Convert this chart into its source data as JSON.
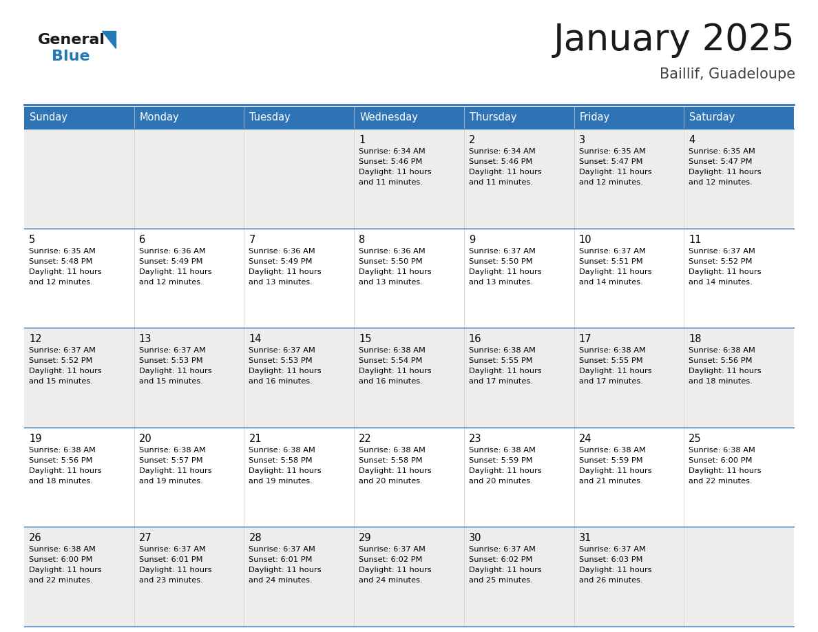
{
  "title": "January 2025",
  "subtitle": "Baillif, Guadeloupe",
  "days_of_week": [
    "Sunday",
    "Monday",
    "Tuesday",
    "Wednesday",
    "Thursday",
    "Friday",
    "Saturday"
  ],
  "header_bg": "#2E74B5",
  "header_text": "#FFFFFF",
  "row_bg_odd": "#EDEDED",
  "row_bg_even": "#FFFFFF",
  "cell_text": "#000000",
  "day_number_color": "#000000",
  "divider_color": "#2E74B5",
  "title_color": "#1A1A1A",
  "subtitle_color": "#404040",
  "logo_general_color": "#1A1A1A",
  "logo_blue_color": "#2179B5",
  "calendar_data": [
    [
      {
        "day": null,
        "sunrise": null,
        "sunset": null,
        "daylight": null
      },
      {
        "day": null,
        "sunrise": null,
        "sunset": null,
        "daylight": null
      },
      {
        "day": null,
        "sunrise": null,
        "sunset": null,
        "daylight": null
      },
      {
        "day": 1,
        "sunrise": "6:34 AM",
        "sunset": "5:46 PM",
        "daylight": "11 hours and 11 minutes."
      },
      {
        "day": 2,
        "sunrise": "6:34 AM",
        "sunset": "5:46 PM",
        "daylight": "11 hours and 11 minutes."
      },
      {
        "day": 3,
        "sunrise": "6:35 AM",
        "sunset": "5:47 PM",
        "daylight": "11 hours and 12 minutes."
      },
      {
        "day": 4,
        "sunrise": "6:35 AM",
        "sunset": "5:47 PM",
        "daylight": "11 hours and 12 minutes."
      }
    ],
    [
      {
        "day": 5,
        "sunrise": "6:35 AM",
        "sunset": "5:48 PM",
        "daylight": "11 hours and 12 minutes."
      },
      {
        "day": 6,
        "sunrise": "6:36 AM",
        "sunset": "5:49 PM",
        "daylight": "11 hours and 12 minutes."
      },
      {
        "day": 7,
        "sunrise": "6:36 AM",
        "sunset": "5:49 PM",
        "daylight": "11 hours and 13 minutes."
      },
      {
        "day": 8,
        "sunrise": "6:36 AM",
        "sunset": "5:50 PM",
        "daylight": "11 hours and 13 minutes."
      },
      {
        "day": 9,
        "sunrise": "6:37 AM",
        "sunset": "5:50 PM",
        "daylight": "11 hours and 13 minutes."
      },
      {
        "day": 10,
        "sunrise": "6:37 AM",
        "sunset": "5:51 PM",
        "daylight": "11 hours and 14 minutes."
      },
      {
        "day": 11,
        "sunrise": "6:37 AM",
        "sunset": "5:52 PM",
        "daylight": "11 hours and 14 minutes."
      }
    ],
    [
      {
        "day": 12,
        "sunrise": "6:37 AM",
        "sunset": "5:52 PM",
        "daylight": "11 hours and 15 minutes."
      },
      {
        "day": 13,
        "sunrise": "6:37 AM",
        "sunset": "5:53 PM",
        "daylight": "11 hours and 15 minutes."
      },
      {
        "day": 14,
        "sunrise": "6:37 AM",
        "sunset": "5:53 PM",
        "daylight": "11 hours and 16 minutes."
      },
      {
        "day": 15,
        "sunrise": "6:38 AM",
        "sunset": "5:54 PM",
        "daylight": "11 hours and 16 minutes."
      },
      {
        "day": 16,
        "sunrise": "6:38 AM",
        "sunset": "5:55 PM",
        "daylight": "11 hours and 17 minutes."
      },
      {
        "day": 17,
        "sunrise": "6:38 AM",
        "sunset": "5:55 PM",
        "daylight": "11 hours and 17 minutes."
      },
      {
        "day": 18,
        "sunrise": "6:38 AM",
        "sunset": "5:56 PM",
        "daylight": "11 hours and 18 minutes."
      }
    ],
    [
      {
        "day": 19,
        "sunrise": "6:38 AM",
        "sunset": "5:56 PM",
        "daylight": "11 hours and 18 minutes."
      },
      {
        "day": 20,
        "sunrise": "6:38 AM",
        "sunset": "5:57 PM",
        "daylight": "11 hours and 19 minutes."
      },
      {
        "day": 21,
        "sunrise": "6:38 AM",
        "sunset": "5:58 PM",
        "daylight": "11 hours and 19 minutes."
      },
      {
        "day": 22,
        "sunrise": "6:38 AM",
        "sunset": "5:58 PM",
        "daylight": "11 hours and 20 minutes."
      },
      {
        "day": 23,
        "sunrise": "6:38 AM",
        "sunset": "5:59 PM",
        "daylight": "11 hours and 20 minutes."
      },
      {
        "day": 24,
        "sunrise": "6:38 AM",
        "sunset": "5:59 PM",
        "daylight": "11 hours and 21 minutes."
      },
      {
        "day": 25,
        "sunrise": "6:38 AM",
        "sunset": "6:00 PM",
        "daylight": "11 hours and 22 minutes."
      }
    ],
    [
      {
        "day": 26,
        "sunrise": "6:38 AM",
        "sunset": "6:00 PM",
        "daylight": "11 hours and 22 minutes."
      },
      {
        "day": 27,
        "sunrise": "6:37 AM",
        "sunset": "6:01 PM",
        "daylight": "11 hours and 23 minutes."
      },
      {
        "day": 28,
        "sunrise": "6:37 AM",
        "sunset": "6:01 PM",
        "daylight": "11 hours and 24 minutes."
      },
      {
        "day": 29,
        "sunrise": "6:37 AM",
        "sunset": "6:02 PM",
        "daylight": "11 hours and 24 minutes."
      },
      {
        "day": 30,
        "sunrise": "6:37 AM",
        "sunset": "6:02 PM",
        "daylight": "11 hours and 25 minutes."
      },
      {
        "day": 31,
        "sunrise": "6:37 AM",
        "sunset": "6:03 PM",
        "daylight": "11 hours and 26 minutes."
      },
      {
        "day": null,
        "sunrise": null,
        "sunset": null,
        "daylight": null
      }
    ]
  ]
}
